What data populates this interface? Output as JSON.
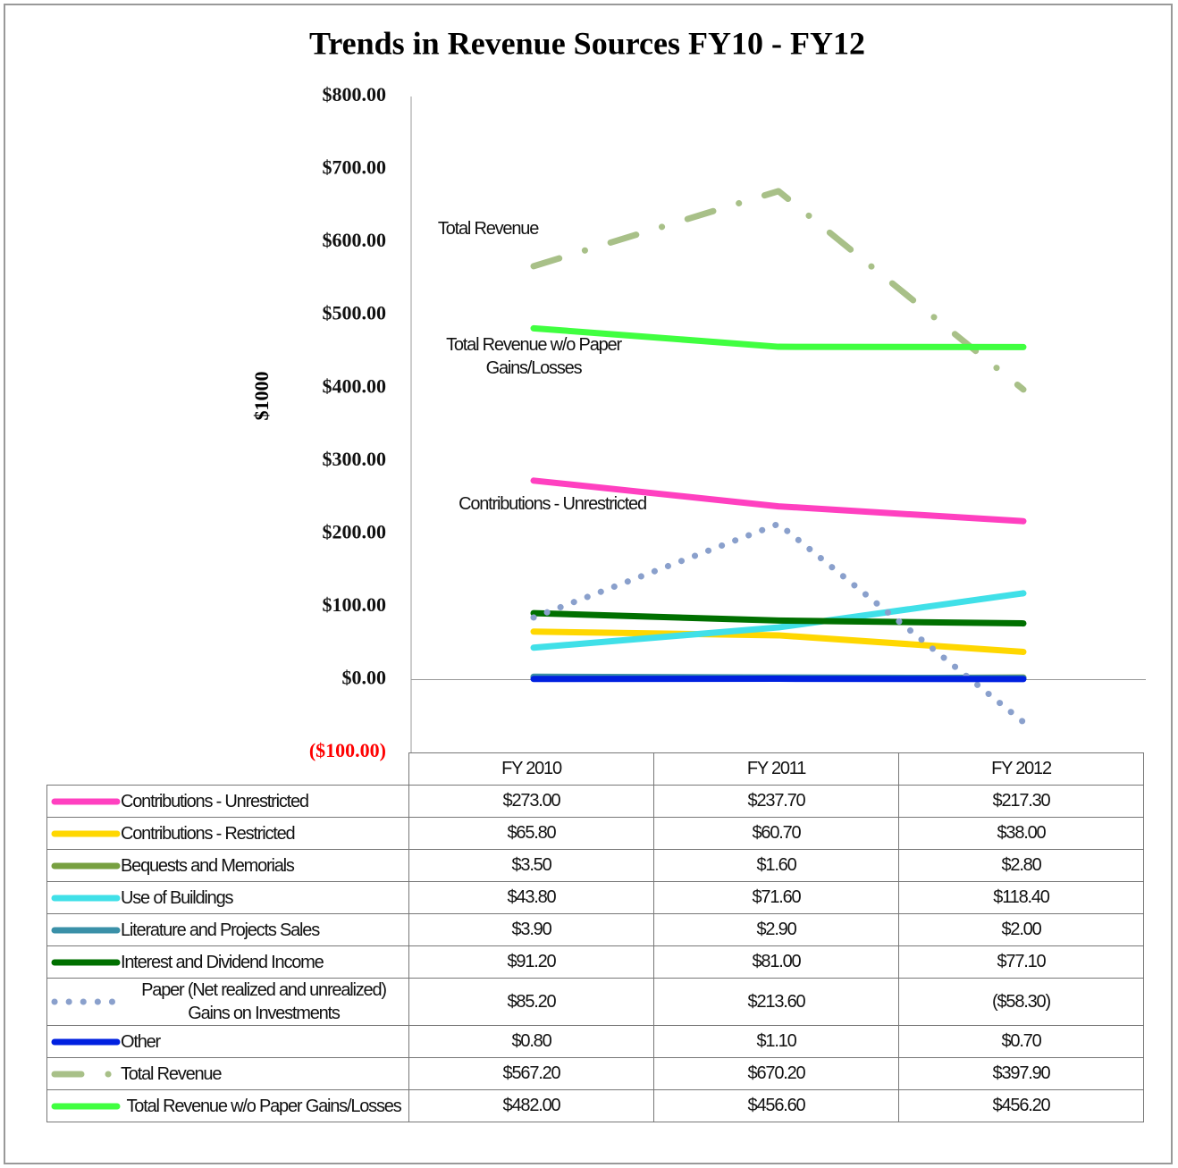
{
  "chart_data": {
    "type": "line",
    "title": "Trends in Revenue Sources FY10 - FY12",
    "y_label": "$1000",
    "categories": [
      "FY 2010",
      "FY 2011",
      "FY 2012"
    ],
    "ylim": [
      -100,
      800
    ],
    "yticks": [
      {
        "value": -100,
        "label": "($100.00)",
        "color": "#ff0000"
      },
      {
        "value": 0,
        "label": "$0.00"
      },
      {
        "value": 100,
        "label": "$100.00"
      },
      {
        "value": 200,
        "label": "$200.00"
      },
      {
        "value": 300,
        "label": "$300.00"
      },
      {
        "value": 400,
        "label": "$400.00"
      },
      {
        "value": 500,
        "label": "$500.00"
      },
      {
        "value": 600,
        "label": "$600.00"
      },
      {
        "value": 700,
        "label": "$700.00"
      },
      {
        "value": 800,
        "label": "$800.00"
      }
    ],
    "grid": false,
    "series": [
      {
        "name": "Contributions - Unrestricted",
        "color": "#ff40c0",
        "style": "solid",
        "values": [
          273.0,
          237.7,
          217.3
        ],
        "value_labels": [
          "$273.00",
          "$237.70",
          "$217.30"
        ]
      },
      {
        "name": "Contributions - Restricted",
        "color": "#ffd700",
        "style": "solid",
        "values": [
          65.8,
          60.7,
          38.0
        ],
        "value_labels": [
          "$65.80",
          "$60.70",
          "$38.00"
        ]
      },
      {
        "name": "Bequests and Memorials",
        "color": "#77a040",
        "style": "solid",
        "values": [
          3.5,
          1.6,
          2.8
        ],
        "value_labels": [
          "$3.50",
          "$1.60",
          "$2.80"
        ]
      },
      {
        "name": "Use of Buildings",
        "color": "#40e0e8",
        "style": "solid",
        "values": [
          43.8,
          71.6,
          118.4
        ],
        "value_labels": [
          "$43.80",
          "$71.60",
          "$118.40"
        ]
      },
      {
        "name": "Literature and Projects Sales",
        "color": "#3a90a8",
        "style": "solid",
        "values": [
          3.9,
          2.9,
          2.0
        ],
        "value_labels": [
          "$3.90",
          "$2.90",
          "$2.00"
        ]
      },
      {
        "name": "Interest and Dividend Income",
        "color": "#007000",
        "style": "solid",
        "values": [
          91.2,
          81.0,
          77.1
        ],
        "value_labels": [
          "$91.20",
          "$81.00",
          "$77.10"
        ]
      },
      {
        "name": "Paper (Net realized and unrealized) Gains on Investments",
        "color": "#8aa0cc",
        "style": "dotted",
        "values": [
          85.2,
          213.6,
          -58.3
        ],
        "value_labels": [
          "$85.20",
          "$213.60",
          "($58.30)"
        ]
      },
      {
        "name": "Other",
        "color": "#0020e0",
        "style": "solid",
        "values": [
          0.8,
          1.1,
          0.7
        ],
        "value_labels": [
          "$0.80",
          "$1.10",
          "$0.70"
        ]
      },
      {
        "name": "Total Revenue",
        "color": "#a8c088",
        "style": "dash-dot",
        "values": [
          567.2,
          670.2,
          397.9
        ],
        "value_labels": [
          "$567.20",
          "$670.20",
          "$397.90"
        ]
      },
      {
        "name": "Total Revenue w/o Paper Gains/Losses",
        "color": "#40ff40",
        "style": "solid",
        "values": [
          482.0,
          456.6,
          456.2
        ],
        "value_labels": [
          "$482.00",
          "$456.60",
          "$456.20"
        ]
      }
    ],
    "annotations": [
      {
        "text": "Total Revenue"
      },
      {
        "text": "Total Revenue w/o Paper Gains/Losses"
      },
      {
        "text": "Contributions - Unrestricted"
      }
    ]
  }
}
